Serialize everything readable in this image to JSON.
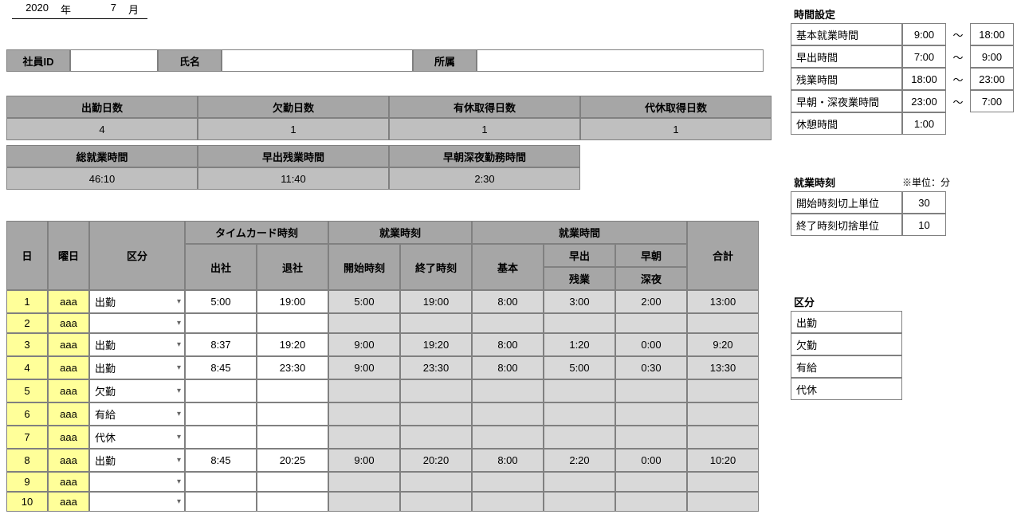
{
  "ym": {
    "year": "2020",
    "year_lbl": "年",
    "month": "7",
    "month_lbl": "月"
  },
  "info": {
    "emp_id_lbl": "社員ID",
    "emp_id": "",
    "name_lbl": "氏名",
    "name": "",
    "dept_lbl": "所属",
    "dept": ""
  },
  "summary1": {
    "h1": "出勤日数",
    "v1": "4",
    "h2": "欠勤日数",
    "v2": "1",
    "h3": "有休取得日数",
    "v3": "1",
    "h4": "代休取得日数",
    "v4": "1"
  },
  "summary2": {
    "h1": "総就業時間",
    "v1": "46:10",
    "h2": "早出残業時間",
    "v2": "11:40",
    "h3": "早朝深夜勤務時間",
    "v3": "2:30"
  },
  "main_headers": {
    "day": "日",
    "dow": "曜日",
    "kubun": "区分",
    "timecard": "タイムカード時刻",
    "in": "出社",
    "out": "退社",
    "worktime_hdr": "就業時刻",
    "start": "開始時刻",
    "end": "終了時刻",
    "workhours": "就業時間",
    "basic": "基本",
    "hayade1": "早出",
    "hayade2": "残業",
    "soucho1": "早朝",
    "soucho2": "深夜",
    "total": "合計"
  },
  "rows": [
    {
      "d": "1",
      "dow": "aaa",
      "k": "出勤",
      "in": "5:00",
      "out": "19:00",
      "s": "5:00",
      "e": "19:00",
      "b": "8:00",
      "h": "3:00",
      "n": "2:00",
      "t": "13:00"
    },
    {
      "d": "2",
      "dow": "aaa",
      "k": "",
      "in": "",
      "out": "",
      "s": "",
      "e": "",
      "b": "",
      "h": "",
      "n": "",
      "t": ""
    },
    {
      "d": "3",
      "dow": "aaa",
      "k": "出勤",
      "in": "8:37",
      "out": "19:20",
      "s": "9:00",
      "e": "19:20",
      "b": "8:00",
      "h": "1:20",
      "n": "0:00",
      "t": "9:20"
    },
    {
      "d": "4",
      "dow": "aaa",
      "k": "出勤",
      "in": "8:45",
      "out": "23:30",
      "s": "9:00",
      "e": "23:30",
      "b": "8:00",
      "h": "5:00",
      "n": "0:30",
      "t": "13:30"
    },
    {
      "d": "5",
      "dow": "aaa",
      "k": "欠勤",
      "in": "",
      "out": "",
      "s": "",
      "e": "",
      "b": "",
      "h": "",
      "n": "",
      "t": ""
    },
    {
      "d": "6",
      "dow": "aaa",
      "k": "有給",
      "in": "",
      "out": "",
      "s": "",
      "e": "",
      "b": "",
      "h": "",
      "n": "",
      "t": ""
    },
    {
      "d": "7",
      "dow": "aaa",
      "k": "代休",
      "in": "",
      "out": "",
      "s": "",
      "e": "",
      "b": "",
      "h": "",
      "n": "",
      "t": ""
    },
    {
      "d": "8",
      "dow": "aaa",
      "k": "出勤",
      "in": "8:45",
      "out": "20:25",
      "s": "9:00",
      "e": "20:20",
      "b": "8:00",
      "h": "2:20",
      "n": "0:00",
      "t": "10:20"
    },
    {
      "d": "9",
      "dow": "aaa",
      "k": "",
      "in": "",
      "out": "",
      "s": "",
      "e": "",
      "b": "",
      "h": "",
      "n": "",
      "t": ""
    },
    {
      "d": "10",
      "dow": "aaa",
      "k": "",
      "in": "",
      "out": "",
      "s": "",
      "e": "",
      "b": "",
      "h": "",
      "n": "",
      "t": ""
    }
  ],
  "time_settings": {
    "title": "時間設定",
    "r1l": "基本就業時間",
    "r1a": "9:00",
    "r1m": "～",
    "r1b": "18:00",
    "r2l": "早出時間",
    "r2a": "7:00",
    "r2m": "～",
    "r2b": "9:00",
    "r3l": "残業時間",
    "r3a": "18:00",
    "r3m": "～",
    "r3b": "23:00",
    "r4l": "早朝・深夜業時間",
    "r4a": "23:00",
    "r4m": "～",
    "r4b": "7:00",
    "r5l": "休憩時間",
    "r5a": "1:00"
  },
  "work_times": {
    "title": "就業時刻",
    "unit": "※単位：分",
    "r1l": "開始時刻切上単位",
    "r1v": "30",
    "r2l": "終了時刻切捨単位",
    "r2v": "10"
  },
  "kubun": {
    "title": "区分",
    "items": [
      "出勤",
      "欠勤",
      "有給",
      "代休"
    ]
  },
  "colors": {
    "hdr_dark": "#a6a6a6",
    "hdr_mid": "#bfbfbf",
    "readonly": "#d9d9d9",
    "yellow": "#ffff99",
    "border": "#808080"
  }
}
